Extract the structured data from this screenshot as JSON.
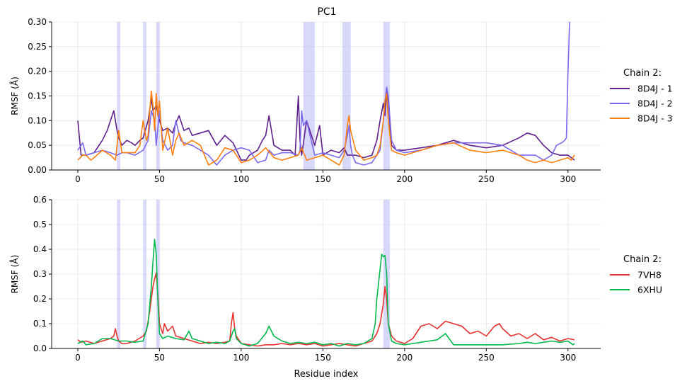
{
  "figure_title": "PC1",
  "chart_data": [
    {
      "type": "line",
      "xlabel": "",
      "ylabel": "RMSF (Å)",
      "xlim": [
        -16,
        320
      ],
      "ylim": [
        0,
        0.3
      ],
      "xticks": [
        0,
        50,
        100,
        150,
        200,
        250,
        300
      ],
      "yticks": [
        0.0,
        0.05,
        0.1,
        0.15,
        0.2,
        0.25,
        0.3
      ],
      "ytick_labels": [
        "0.00",
        "0.05",
        "0.10",
        "0.15",
        "0.20",
        "0.25",
        "0.30"
      ],
      "grid": true,
      "legend": {
        "title": "Chain 2:",
        "placement": "right"
      },
      "highlight_ranges": [
        [
          24,
          26
        ],
        [
          40,
          42
        ],
        [
          48,
          50
        ],
        [
          138,
          145
        ],
        [
          162,
          167
        ],
        [
          187,
          191
        ]
      ],
      "series": [
        {
          "name": "8D4J - 1",
          "color": "#5e1f8c",
          "x": [
            0,
            2,
            5,
            10,
            15,
            18,
            20,
            22,
            23,
            24,
            25,
            27,
            30,
            33,
            35,
            38,
            40,
            43,
            45,
            46,
            48,
            50,
            52,
            55,
            58,
            60,
            62,
            65,
            68,
            70,
            75,
            80,
            85,
            90,
            95,
            100,
            103,
            105,
            110,
            113,
            115,
            117,
            120,
            125,
            130,
            133,
            135,
            136,
            137,
            140,
            143,
            145,
            148,
            150,
            155,
            160,
            163,
            165,
            170,
            175,
            180,
            183,
            185,
            187,
            188,
            189,
            190,
            192,
            195,
            200,
            210,
            220,
            230,
            240,
            250,
            260,
            270,
            275,
            280,
            285,
            290,
            295,
            300,
            302,
            304
          ],
          "y": [
            0.1,
            0.03,
            0.03,
            0.035,
            0.06,
            0.08,
            0.1,
            0.12,
            0.1,
            0.08,
            0.065,
            0.05,
            0.06,
            0.055,
            0.05,
            0.06,
            0.065,
            0.1,
            0.145,
            0.12,
            0.13,
            0.1,
            0.08,
            0.085,
            0.075,
            0.095,
            0.11,
            0.08,
            0.085,
            0.07,
            0.075,
            0.08,
            0.05,
            0.07,
            0.055,
            0.02,
            0.02,
            0.03,
            0.04,
            0.06,
            0.07,
            0.11,
            0.05,
            0.04,
            0.04,
            0.03,
            0.15,
            0.06,
            0.03,
            0.1,
            0.07,
            0.05,
            0.09,
            0.03,
            0.04,
            0.035,
            0.045,
            0.03,
            0.03,
            0.025,
            0.03,
            0.06,
            0.1,
            0.135,
            0.11,
            0.16,
            0.14,
            0.05,
            0.04,
            0.04,
            0.045,
            0.05,
            0.06,
            0.05,
            0.045,
            0.05,
            0.065,
            0.075,
            0.07,
            0.05,
            0.035,
            0.03,
            0.03,
            0.025,
            0.02
          ]
        },
        {
          "name": "8D4J - 2",
          "color": "#7b68ee",
          "x": [
            0,
            1,
            3,
            5,
            10,
            15,
            20,
            24,
            27,
            30,
            35,
            40,
            43,
            45,
            47,
            48,
            50,
            52,
            55,
            58,
            60,
            63,
            65,
            70,
            75,
            80,
            85,
            90,
            95,
            100,
            105,
            110,
            115,
            117,
            120,
            125,
            130,
            135,
            136,
            137,
            138,
            140,
            145,
            150,
            155,
            160,
            163,
            165,
            166,
            167,
            168,
            170,
            175,
            180,
            185,
            187,
            188,
            189,
            190,
            192,
            195,
            200,
            210,
            220,
            230,
            240,
            250,
            260,
            270,
            280,
            285,
            290,
            293,
            296,
            298,
            299,
            300,
            301
          ],
          "y": [
            0.04,
            0.045,
            0.055,
            0.03,
            0.035,
            0.04,
            0.035,
            0.03,
            0.035,
            0.035,
            0.03,
            0.04,
            0.06,
            0.12,
            0.1,
            0.05,
            0.12,
            0.06,
            0.04,
            0.05,
            0.1,
            0.06,
            0.055,
            0.05,
            0.04,
            0.03,
            0.01,
            0.03,
            0.04,
            0.045,
            0.04,
            0.015,
            0.02,
            0.04,
            0.03,
            0.035,
            0.035,
            0.03,
            0.04,
            0.12,
            0.09,
            0.1,
            0.03,
            0.035,
            0.03,
            0.025,
            0.04,
            0.07,
            0.09,
            0.05,
            0.03,
            0.015,
            0.01,
            0.015,
            0.04,
            0.1,
            0.14,
            0.168,
            0.15,
            0.06,
            0.04,
            0.035,
            0.04,
            0.05,
            0.055,
            0.055,
            0.055,
            0.05,
            0.03,
            0.03,
            0.02,
            0.03,
            0.05,
            0.055,
            0.06,
            0.065,
            0.2,
            0.3
          ]
        },
        {
          "name": "8D4J - 3",
          "color": "#ff7f0e",
          "x": [
            0,
            3,
            5,
            8,
            10,
            15,
            20,
            23,
            25,
            27,
            30,
            35,
            38,
            40,
            42,
            43,
            44,
            45,
            46,
            47,
            48,
            49,
            50,
            52,
            55,
            58,
            60,
            62,
            65,
            70,
            75,
            80,
            85,
            90,
            95,
            100,
            105,
            110,
            115,
            120,
            125,
            130,
            135,
            137,
            140,
            145,
            150,
            155,
            160,
            163,
            165,
            166,
            167,
            170,
            175,
            180,
            183,
            185,
            187,
            188,
            189,
            190,
            192,
            195,
            200,
            210,
            220,
            230,
            240,
            250,
            260,
            270,
            275,
            280,
            285,
            290,
            295,
            300,
            302,
            304
          ],
          "y": [
            0.02,
            0.03,
            0.03,
            0.02,
            0.025,
            0.04,
            0.03,
            0.02,
            0.08,
            0.035,
            0.035,
            0.035,
            0.05,
            0.1,
            0.06,
            0.07,
            0.12,
            0.16,
            0.13,
            0.08,
            0.155,
            0.11,
            0.14,
            0.04,
            0.085,
            0.03,
            0.06,
            0.075,
            0.05,
            0.06,
            0.05,
            0.01,
            0.02,
            0.045,
            0.04,
            0.015,
            0.02,
            0.03,
            0.045,
            0.025,
            0.02,
            0.025,
            0.03,
            0.045,
            0.02,
            0.025,
            0.03,
            0.02,
            0.01,
            0.03,
            0.09,
            0.11,
            0.08,
            0.04,
            0.02,
            0.025,
            0.03,
            0.05,
            0.1,
            0.14,
            0.155,
            0.1,
            0.04,
            0.035,
            0.03,
            0.04,
            0.05,
            0.055,
            0.04,
            0.035,
            0.04,
            0.03,
            0.02,
            0.015,
            0.02,
            0.015,
            0.02,
            0.025,
            0.02,
            0.03
          ]
        }
      ]
    },
    {
      "type": "line",
      "xlabel": "Residue index",
      "ylabel": "RMSF (Å)",
      "xlim": [
        -16,
        320
      ],
      "ylim": [
        0,
        0.6
      ],
      "xticks": [
        0,
        50,
        100,
        150,
        200,
        250,
        300
      ],
      "yticks": [
        0.0,
        0.1,
        0.2,
        0.3,
        0.4,
        0.5,
        0.6
      ],
      "ytick_labels": [
        "0.0",
        "0.1",
        "0.2",
        "0.3",
        "0.4",
        "0.5",
        "0.6"
      ],
      "grid": true,
      "legend": {
        "title": "Chain 2:",
        "placement": "right"
      },
      "highlight_ranges": [
        [
          24,
          26
        ],
        [
          40,
          42
        ],
        [
          48,
          50
        ],
        [
          187,
          191
        ]
      ],
      "series": [
        {
          "name": "7VH8",
          "color": "#e83030",
          "x": [
            0,
            2,
            5,
            10,
            15,
            20,
            22,
            23,
            24,
            25,
            27,
            30,
            35,
            40,
            42,
            44,
            45,
            46,
            47,
            48,
            49,
            50,
            52,
            53,
            55,
            58,
            60,
            65,
            70,
            75,
            80,
            85,
            90,
            93,
            94,
            95,
            96,
            97,
            100,
            105,
            110,
            115,
            120,
            125,
            130,
            135,
            140,
            145,
            150,
            155,
            160,
            165,
            170,
            175,
            180,
            183,
            185,
            187,
            188,
            189,
            190,
            192,
            195,
            200,
            205,
            210,
            215,
            220,
            225,
            230,
            235,
            240,
            245,
            250,
            255,
            258,
            260,
            265,
            270,
            275,
            280,
            285,
            290,
            295,
            300,
            304
          ],
          "y": [
            0.035,
            0.025,
            0.03,
            0.02,
            0.03,
            0.04,
            0.05,
            0.08,
            0.05,
            0.03,
            0.02,
            0.02,
            0.03,
            0.05,
            0.07,
            0.15,
            0.2,
            0.25,
            0.28,
            0.305,
            0.22,
            0.1,
            0.06,
            0.1,
            0.07,
            0.09,
            0.05,
            0.04,
            0.03,
            0.02,
            0.025,
            0.02,
            0.025,
            0.03,
            0.1,
            0.145,
            0.08,
            0.05,
            0.02,
            0.015,
            0.01,
            0.015,
            0.015,
            0.02,
            0.015,
            0.02,
            0.015,
            0.02,
            0.01,
            0.015,
            0.02,
            0.015,
            0.01,
            0.02,
            0.03,
            0.06,
            0.1,
            0.18,
            0.25,
            0.2,
            0.1,
            0.05,
            0.03,
            0.02,
            0.04,
            0.09,
            0.1,
            0.08,
            0.11,
            0.1,
            0.09,
            0.06,
            0.07,
            0.05,
            0.09,
            0.1,
            0.08,
            0.05,
            0.06,
            0.04,
            0.06,
            0.035,
            0.045,
            0.03,
            0.04,
            0.035
          ]
        },
        {
          "name": "6XHU",
          "color": "#00b84c",
          "x": [
            0,
            3,
            5,
            10,
            15,
            20,
            25,
            30,
            35,
            40,
            43,
            45,
            46,
            47,
            48,
            49,
            50,
            52,
            55,
            60,
            65,
            68,
            70,
            75,
            80,
            85,
            90,
            93,
            95,
            96,
            97,
            100,
            105,
            110,
            115,
            117,
            120,
            125,
            130,
            135,
            140,
            145,
            150,
            155,
            160,
            165,
            170,
            175,
            180,
            182,
            183,
            185,
            186,
            187,
            188,
            189,
            190,
            192,
            195,
            200,
            205,
            210,
            215,
            220,
            225,
            230,
            240,
            250,
            260,
            270,
            275,
            280,
            290,
            295,
            300,
            303,
            304
          ],
          "y": [
            0.02,
            0.03,
            0.015,
            0.02,
            0.04,
            0.04,
            0.03,
            0.03,
            0.025,
            0.03,
            0.1,
            0.25,
            0.35,
            0.44,
            0.38,
            0.2,
            0.06,
            0.04,
            0.05,
            0.04,
            0.035,
            0.07,
            0.04,
            0.03,
            0.02,
            0.025,
            0.02,
            0.03,
            0.07,
            0.08,
            0.04,
            0.02,
            0.01,
            0.02,
            0.06,
            0.09,
            0.05,
            0.03,
            0.02,
            0.025,
            0.02,
            0.025,
            0.015,
            0.02,
            0.01,
            0.02,
            0.015,
            0.02,
            0.04,
            0.1,
            0.2,
            0.32,
            0.38,
            0.37,
            0.375,
            0.3,
            0.1,
            0.03,
            0.02,
            0.015,
            0.02,
            0.025,
            0.03,
            0.035,
            0.06,
            0.015,
            0.015,
            0.015,
            0.015,
            0.02,
            0.025,
            0.02,
            0.03,
            0.025,
            0.03,
            0.015,
            0.02
          ]
        }
      ]
    }
  ]
}
